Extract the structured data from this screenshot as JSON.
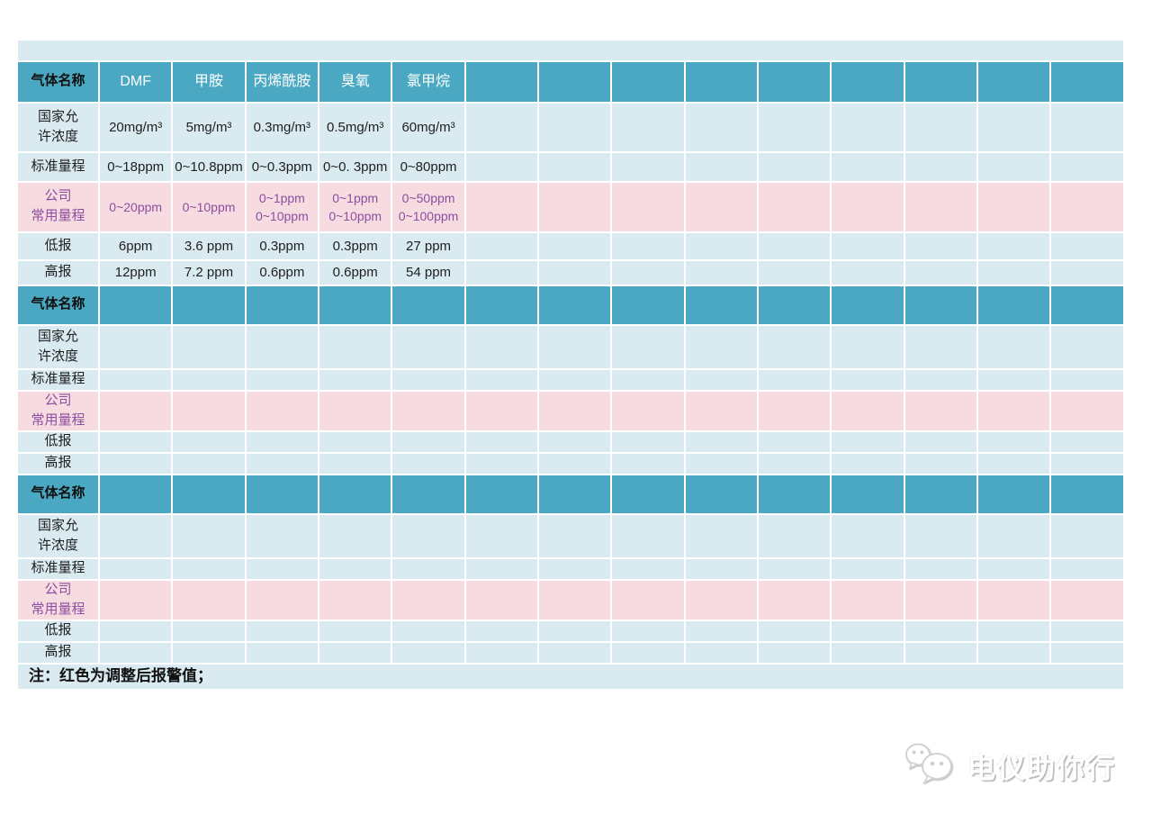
{
  "table": {
    "gas_header_label": "气体名称",
    "data_columns": 14,
    "row_labels": {
      "national": [
        "国家允",
        "许浓度"
      ],
      "standard": "标准量程",
      "company": [
        "公司",
        "常用量程"
      ],
      "low": "低报",
      "high": "高报"
    },
    "sections": [
      {
        "gases": [
          "DMF",
          "甲胺",
          "丙烯酰胺",
          "臭氧",
          "氯甲烷"
        ],
        "national": [
          "20mg/m³",
          "5mg/m³",
          "0.3mg/m³",
          "0.5mg/m³",
          "60mg/m³"
        ],
        "standard": [
          "0~18ppm",
          "0~10.8ppm",
          "0~0.3ppm",
          "0~0. 3ppm",
          "0~80ppm"
        ],
        "company": [
          [
            "0~20ppm"
          ],
          [
            "0~10ppm"
          ],
          [
            "0~1ppm",
            "0~10ppm"
          ],
          [
            "0~1ppm",
            "0~10ppm"
          ],
          [
            "0~50ppm",
            "0~100ppm"
          ]
        ],
        "low": [
          {
            "t": "6ppm",
            "red": false
          },
          {
            "t": "3.6 ppm",
            "red": false
          },
          {
            "t": "0.3ppm",
            "red": true
          },
          {
            "t": "0.3ppm",
            "red": true
          },
          {
            "t": "27 ppm",
            "red": false
          }
        ],
        "high": [
          {
            "t": "12ppm",
            "red": false
          },
          {
            "t": "7.2 ppm",
            "red": false
          },
          {
            "t": "0.6ppm",
            "red": true
          },
          {
            "t": "0.6ppm",
            "red": true
          },
          {
            "t": "54 ppm",
            "red": false
          }
        ]
      },
      {
        "gases": [],
        "national": [],
        "standard": [],
        "company": [],
        "low": [],
        "high": []
      },
      {
        "gases": [],
        "national": [],
        "standard": [],
        "company": [],
        "low": [],
        "high": []
      }
    ],
    "note": "注：红色为调整后报警值；"
  },
  "watermark": {
    "text": "电仪助你行",
    "icon": "wechat-logo-icon"
  },
  "colors": {
    "header_teal": "#4aa8c2",
    "row_light_blue": "#d9eaf0",
    "row_pink": "#f6dbe0",
    "purple_text": "#8d4fa0",
    "red_text": "#e02020",
    "dark_text": "#1f1f1f",
    "grid_line": "#ffffff"
  }
}
